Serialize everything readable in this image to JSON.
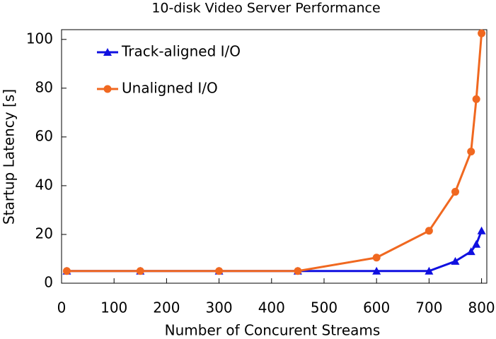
{
  "chart_data": {
    "type": "line",
    "title": "10-disk Video Server Performance",
    "x_label": "Number of Concurent Streams",
    "y_label": "Startup Latency [s]",
    "series": [
      {
        "name": "Track-aligned I/O",
        "color": "#1010e0",
        "marker": "triangle",
        "x": [
          10,
          150,
          300,
          450,
          600,
          700,
          750,
          780,
          790,
          800
        ],
        "values": [
          5,
          5,
          5,
          5,
          5,
          5,
          9,
          13,
          16,
          21.5
        ]
      },
      {
        "name": "Unaligned I/O",
        "color": "#f06820",
        "marker": "circle",
        "x": [
          10,
          150,
          300,
          450,
          600,
          700,
          750,
          780,
          790,
          800
        ],
        "values": [
          5,
          5,
          5,
          5,
          10.5,
          21.5,
          37.5,
          54,
          75.5,
          102.5
        ]
      }
    ],
    "xlim": [
      0,
      810
    ],
    "xticks": [
      0,
      100,
      200,
      300,
      400,
      500,
      600,
      700,
      800
    ],
    "ylim": [
      0,
      104
    ],
    "yticks": [
      0,
      20,
      40,
      60,
      80,
      100
    ],
    "legend": "upper left"
  }
}
